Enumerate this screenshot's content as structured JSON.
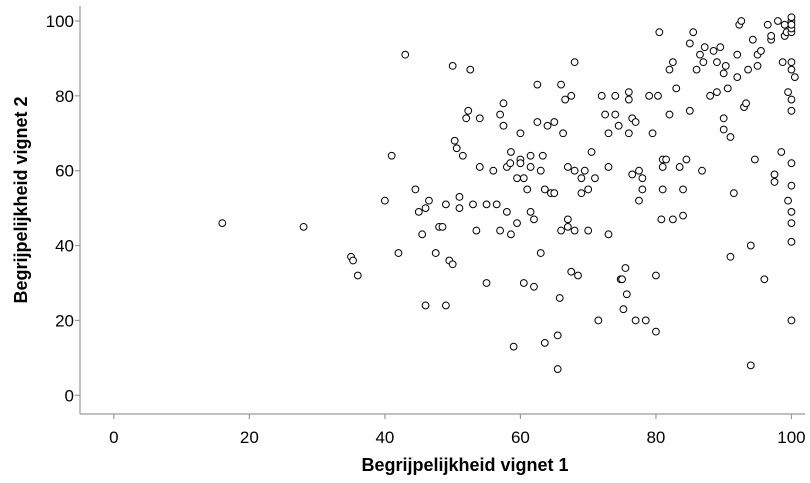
{
  "chart_data": {
    "type": "scatter",
    "xlabel": "Begrijpelijkheid vignet 1",
    "ylabel": "Begrijpelijkheid vignet 2",
    "xlim": [
      -5,
      102
    ],
    "ylim": [
      -5,
      104
    ],
    "xticks": [
      0,
      20,
      40,
      60,
      80,
      100
    ],
    "yticks": [
      0,
      20,
      40,
      60,
      80,
      100
    ],
    "grid": false,
    "marker": "open-circle",
    "points": [
      [
        16,
        46
      ],
      [
        28,
        45
      ],
      [
        35,
        37
      ],
      [
        35.3,
        36
      ],
      [
        36,
        32
      ],
      [
        40,
        52
      ],
      [
        41,
        64
      ],
      [
        42,
        38
      ],
      [
        43,
        91
      ],
      [
        44.5,
        55
      ],
      [
        45,
        49
      ],
      [
        45.5,
        43
      ],
      [
        46,
        50
      ],
      [
        46,
        24
      ],
      [
        46.5,
        52
      ],
      [
        47.5,
        38
      ],
      [
        48,
        45
      ],
      [
        48.5,
        45
      ],
      [
        49,
        24
      ],
      [
        49,
        51
      ],
      [
        49.5,
        36
      ],
      [
        50,
        88
      ],
      [
        50,
        35
      ],
      [
        50.3,
        68
      ],
      [
        50.6,
        66
      ],
      [
        51,
        53
      ],
      [
        51,
        50
      ],
      [
        51.5,
        64
      ],
      [
        52,
        74
      ],
      [
        52.3,
        76
      ],
      [
        52.6,
        87
      ],
      [
        53,
        51
      ],
      [
        53.5,
        44
      ],
      [
        54,
        61
      ],
      [
        54,
        74
      ],
      [
        55,
        51
      ],
      [
        55,
        30
      ],
      [
        56,
        60
      ],
      [
        56.5,
        51
      ],
      [
        57,
        44
      ],
      [
        57,
        75
      ],
      [
        57.5,
        78
      ],
      [
        57.5,
        72
      ],
      [
        58,
        61
      ],
      [
        58,
        49
      ],
      [
        58.5,
        62
      ],
      [
        58.6,
        65
      ],
      [
        58.6,
        43
      ],
      [
        59,
        13
      ],
      [
        59.5,
        58
      ],
      [
        59.5,
        46
      ],
      [
        60,
        63
      ],
      [
        60,
        62
      ],
      [
        60,
        70
      ],
      [
        60.5,
        58
      ],
      [
        60.5,
        30
      ],
      [
        61,
        55
      ],
      [
        61.5,
        64
      ],
      [
        61.5,
        49
      ],
      [
        61.5,
        61
      ],
      [
        62,
        29
      ],
      [
        62,
        47
      ],
      [
        62.5,
        83
      ],
      [
        62.5,
        73
      ],
      [
        63,
        60
      ],
      [
        63,
        38
      ],
      [
        63.3,
        64
      ],
      [
        63.6,
        55
      ],
      [
        63.6,
        14
      ],
      [
        64,
        72
      ],
      [
        64.5,
        54
      ],
      [
        65,
        73
      ],
      [
        65,
        54
      ],
      [
        65.5,
        16
      ],
      [
        65.5,
        7
      ],
      [
        65.8,
        26
      ],
      [
        66,
        44
      ],
      [
        66,
        83
      ],
      [
        66.3,
        70
      ],
      [
        66.6,
        79
      ],
      [
        67,
        47
      ],
      [
        67,
        45
      ],
      [
        67,
        61
      ],
      [
        67.5,
        80
      ],
      [
        67.5,
        33
      ],
      [
        68,
        44
      ],
      [
        68,
        60
      ],
      [
        68,
        89
      ],
      [
        68.5,
        32
      ],
      [
        69,
        58
      ],
      [
        69,
        54
      ],
      [
        69.5,
        60
      ],
      [
        70,
        55
      ],
      [
        70,
        44
      ],
      [
        70.5,
        65
      ],
      [
        71,
        58
      ],
      [
        71.5,
        20
      ],
      [
        72,
        80
      ],
      [
        72.5,
        75
      ],
      [
        73,
        61
      ],
      [
        73,
        43
      ],
      [
        73,
        70
      ],
      [
        74,
        75
      ],
      [
        74,
        80
      ],
      [
        74.5,
        72
      ],
      [
        74.8,
        31
      ],
      [
        75,
        31
      ],
      [
        75.2,
        23
      ],
      [
        75.5,
        34
      ],
      [
        75.7,
        27
      ],
      [
        76,
        79
      ],
      [
        76,
        70
      ],
      [
        76,
        81
      ],
      [
        76.5,
        74
      ],
      [
        76.5,
        59
      ],
      [
        77,
        20
      ],
      [
        77,
        73
      ],
      [
        77.5,
        60
      ],
      [
        77.5,
        52
      ],
      [
        78,
        58
      ],
      [
        78,
        55
      ],
      [
        78.5,
        20
      ],
      [
        79,
        80
      ],
      [
        79.5,
        70
      ],
      [
        80,
        32
      ],
      [
        80,
        17
      ],
      [
        80.3,
        80
      ],
      [
        80.5,
        97
      ],
      [
        80.8,
        47
      ],
      [
        81,
        63
      ],
      [
        81,
        61
      ],
      [
        81,
        55
      ],
      [
        81.5,
        63
      ],
      [
        82,
        87
      ],
      [
        82,
        75
      ],
      [
        82.5,
        47
      ],
      [
        82.5,
        89
      ],
      [
        83,
        82
      ],
      [
        83.5,
        61
      ],
      [
        84,
        48
      ],
      [
        84,
        55
      ],
      [
        84.5,
        63
      ],
      [
        85,
        76
      ],
      [
        85,
        94
      ],
      [
        85.5,
        97
      ],
      [
        86,
        87
      ],
      [
        86.5,
        91
      ],
      [
        86.8,
        60
      ],
      [
        87,
        89
      ],
      [
        87.2,
        93
      ],
      [
        88,
        80
      ],
      [
        88.5,
        92
      ],
      [
        89,
        89
      ],
      [
        89,
        81
      ],
      [
        89.5,
        93
      ],
      [
        90,
        74
      ],
      [
        90,
        71
      ],
      [
        90,
        86
      ],
      [
        90.3,
        88
      ],
      [
        90.6,
        82
      ],
      [
        91,
        37
      ],
      [
        91,
        69
      ],
      [
        91.5,
        54
      ],
      [
        92,
        91
      ],
      [
        92,
        85
      ],
      [
        92.3,
        99
      ],
      [
        92.6,
        100
      ],
      [
        93,
        77
      ],
      [
        93.3,
        78
      ],
      [
        93.6,
        87
      ],
      [
        94,
        8
      ],
      [
        94,
        40
      ],
      [
        94.3,
        95
      ],
      [
        94.6,
        63
      ],
      [
        95,
        91
      ],
      [
        95,
        88
      ],
      [
        95.5,
        92
      ],
      [
        96,
        31
      ],
      [
        96.5,
        99
      ],
      [
        97,
        95
      ],
      [
        97,
        96
      ],
      [
        97.5,
        57
      ],
      [
        97.5,
        59
      ],
      [
        98,
        100
      ],
      [
        98.5,
        65
      ],
      [
        98.7,
        89
      ],
      [
        99,
        99
      ],
      [
        99,
        96
      ],
      [
        99.3,
        97
      ],
      [
        99.5,
        81
      ],
      [
        99.5,
        52
      ],
      [
        100,
        100
      ],
      [
        100,
        41
      ],
      [
        100,
        46
      ],
      [
        100,
        49
      ],
      [
        100,
        56
      ],
      [
        100,
        62
      ],
      [
        100,
        76
      ],
      [
        100,
        79
      ],
      [
        100,
        87
      ],
      [
        100,
        89
      ],
      [
        100,
        97
      ],
      [
        100,
        98
      ],
      [
        100,
        99
      ],
      [
        100,
        20
      ],
      [
        100,
        101
      ],
      [
        100.5,
        85
      ]
    ]
  }
}
